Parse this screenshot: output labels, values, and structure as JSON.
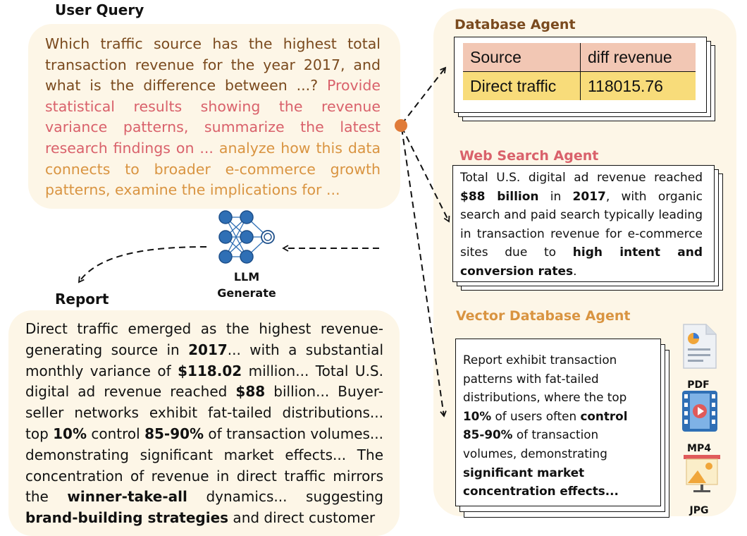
{
  "labels": {
    "user_query": "User Query",
    "report": "Report",
    "llm": "LLM",
    "generate": "Generate"
  },
  "query": {
    "part1": "Which traffic source has the highest total transaction revenue for the year 2017, and what is the difference between ...? ",
    "part2": "Provide statistical results showing the revenue variance patterns, summarize the latest research findings on ... ",
    "part3": "analyze how this data connects to broader e-commerce growth patterns, examine the implications for ..."
  },
  "database_agent": {
    "title": "Database Agent",
    "headers": [
      "Source",
      "diff revenue"
    ],
    "row": [
      "Direct traffic",
      "118015.76"
    ]
  },
  "web_search_agent": {
    "title": "Web Search Agent",
    "t1": "Total U.S. digital ad revenue reached ",
    "b1": "$88 billion",
    "t2": " in ",
    "b2": "2017",
    "t3": ", with organic search and paid search typically leading in transaction revenue for e-commerce sites due to ",
    "b3": "high intent and conversion rates",
    "t4": "."
  },
  "vector_agent": {
    "title": "Vector Database Agent",
    "t1": "Report exhibit transaction patterns with fat-tailed distributions, where the top ",
    "b1": "10%",
    "t2": " of users often ",
    "b2": "control 85-90%",
    "t3": " of transaction volumes, demonstrating ",
    "b3": "significant market concentration effects..."
  },
  "file_types": [
    "PDF",
    "MP4",
    "JPG"
  ],
  "report": {
    "t1": "Direct traffic emerged as the highest revenue-generating source in ",
    "b1": "2017",
    "t2": "... with a substantial monthly variance of ",
    "b2": "$118.02",
    "t3": " million... Total U.S. digital ad revenue reached ",
    "b3": "$88",
    "t4": " billion... Buyer-seller networks exhibit fat-tailed distributions... top ",
    "b4": "10%",
    "t5": " control ",
    "b5": "85-90%",
    "t6": " of transaction volumes... demonstrating significant market effects... The concentration of revenue in direct traffic mirrors the ",
    "b6": "winner-take-all",
    "t7": " dynamics... suggesting ",
    "b7": "brand-building strategies",
    "t8": " and direct customer"
  },
  "colors": {
    "panel_bg": "#fdf6e7",
    "query_brown": "#7a4a1e",
    "query_red": "#d9616b",
    "query_orange": "#d99441",
    "db_header": "#f2c7b4",
    "db_row": "#f8dc7a",
    "node_blue": "#2f6fb5",
    "dot_orange": "#e07b39"
  }
}
